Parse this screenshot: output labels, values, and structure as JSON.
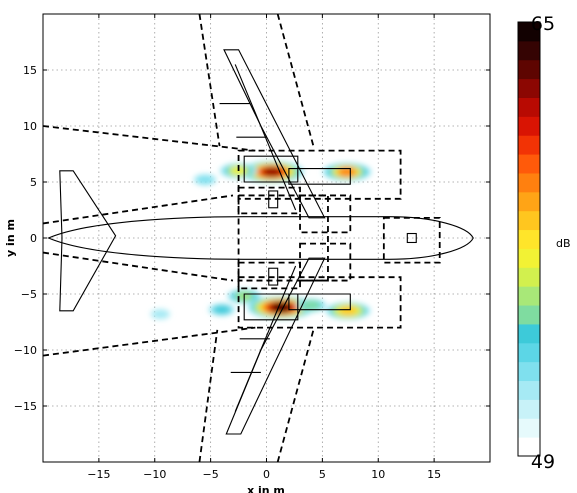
{
  "chart_data": {
    "type": "heatmap",
    "xlabel": "x in m",
    "ylabel": "y in m",
    "xlim": [
      -20,
      20
    ],
    "ylim": [
      -20,
      20
    ],
    "xticks": [
      -15,
      -10,
      -5,
      0,
      5,
      10,
      15
    ],
    "yticks": [
      -15,
      -10,
      -5,
      0,
      5,
      10,
      15
    ],
    "xtick_labels": [
      "−15",
      "−10",
      "−5",
      "0",
      "5",
      "10",
      "15"
    ],
    "ytick_labels": [
      "−15",
      "−10",
      "−5",
      "0",
      "5",
      "10",
      "15"
    ],
    "grid": true,
    "colorbar": {
      "label": "dB",
      "min": 49,
      "max": 65,
      "min_label": "49",
      "max_label": "65",
      "colors": [
        "#ffffff",
        "#e6fafc",
        "#c8f2f8",
        "#a6eaf4",
        "#7fe0ee",
        "#5cd6e6",
        "#3dcad9",
        "#7fdca0",
        "#a8e878",
        "#d2f04e",
        "#f2f234",
        "#ffe52a",
        "#ffc61f",
        "#ffa416",
        "#ff800f",
        "#ff5a0a",
        "#f23305",
        "#d91403",
        "#b80a02",
        "#8c0702",
        "#5e0501",
        "#350403",
        "#120101"
      ]
    },
    "hotspots": [
      {
        "x": 0.5,
        "y": 5.9,
        "level_db": 63
      },
      {
        "x": 7.2,
        "y": 5.9,
        "level_db": 59
      },
      {
        "x": 1.3,
        "y": -6.2,
        "level_db": 64
      },
      {
        "x": 7.3,
        "y": -6.5,
        "level_db": 58
      },
      {
        "x": -2.5,
        "y": 6.0,
        "level_db": 56
      },
      {
        "x": -5.5,
        "y": 5.2,
        "level_db": 52
      },
      {
        "x": -4.0,
        "y": -6.4,
        "level_db": 53
      },
      {
        "x": -9.5,
        "y": -6.8,
        "level_db": 51
      },
      {
        "x": -2.0,
        "y": -5.2,
        "level_db": 55
      },
      {
        "x": 4.0,
        "y": -6.0,
        "level_db": 54
      }
    ]
  }
}
